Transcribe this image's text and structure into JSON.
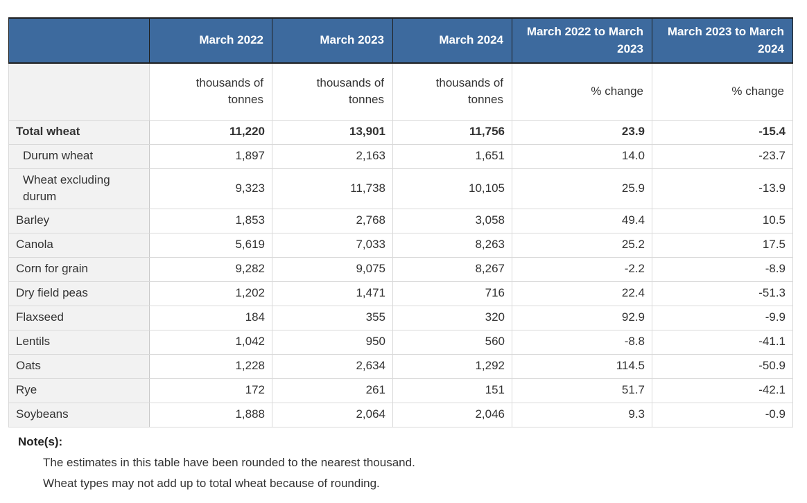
{
  "chart_data": {
    "type": "table",
    "columns": [
      {
        "label": "",
        "unit": ""
      },
      {
        "label": "March 2022",
        "unit": "thousands of tonnes"
      },
      {
        "label": "March 2023",
        "unit": "thousands of tonnes"
      },
      {
        "label": "March 2024",
        "unit": "thousands of tonnes"
      },
      {
        "label": "March 2022 to March 2023",
        "unit": "% change"
      },
      {
        "label": "March 2023 to March 2024",
        "unit": "% change"
      }
    ],
    "rows": [
      {
        "label": "Total wheat",
        "style": "total",
        "values": [
          "11,220",
          "13,901",
          "11,756",
          "23.9",
          "-15.4"
        ]
      },
      {
        "label": "Durum wheat",
        "style": "sub",
        "values": [
          "1,897",
          "2,163",
          "1,651",
          "14.0",
          "-23.7"
        ]
      },
      {
        "label": "Wheat excluding durum",
        "style": "sub",
        "values": [
          "9,323",
          "11,738",
          "10,105",
          "25.9",
          "-13.9"
        ]
      },
      {
        "label": "Barley",
        "style": "",
        "values": [
          "1,853",
          "2,768",
          "3,058",
          "49.4",
          "10.5"
        ]
      },
      {
        "label": "Canola",
        "style": "",
        "values": [
          "5,619",
          "7,033",
          "8,263",
          "25.2",
          "17.5"
        ]
      },
      {
        "label": "Corn for grain",
        "style": "",
        "values": [
          "9,282",
          "9,075",
          "8,267",
          "-2.2",
          "-8.9"
        ]
      },
      {
        "label": "Dry field peas",
        "style": "",
        "values": [
          "1,202",
          "1,471",
          "716",
          "22.4",
          "-51.3"
        ]
      },
      {
        "label": "Flaxseed",
        "style": "",
        "values": [
          "184",
          "355",
          "320",
          "92.9",
          "-9.9"
        ]
      },
      {
        "label": "Lentils",
        "style": "",
        "values": [
          "1,042",
          "950",
          "560",
          "-8.8",
          "-41.1"
        ]
      },
      {
        "label": "Oats",
        "style": "",
        "values": [
          "1,228",
          "2,634",
          "1,292",
          "114.5",
          "-50.9"
        ]
      },
      {
        "label": "Rye",
        "style": "",
        "values": [
          "172",
          "261",
          "151",
          "51.7",
          "-42.1"
        ]
      },
      {
        "label": "Soybeans",
        "style": "",
        "values": [
          "1,888",
          "2,064",
          "2,046",
          "9.3",
          "-0.9"
        ]
      }
    ]
  },
  "notes": {
    "heading": "Note(s):",
    "items": [
      "The estimates in this table have been rounded to the nearest thousand.",
      "Wheat types may not add up to total wheat because of rounding."
    ]
  },
  "colors": {
    "header_bg": "#3D6A9E",
    "header_text": "#FFFFFF",
    "header_border": "#1F1F1F",
    "label_col_bg": "#F2F2F2",
    "body_border": "#D9D9D9",
    "text": "#333333"
  }
}
